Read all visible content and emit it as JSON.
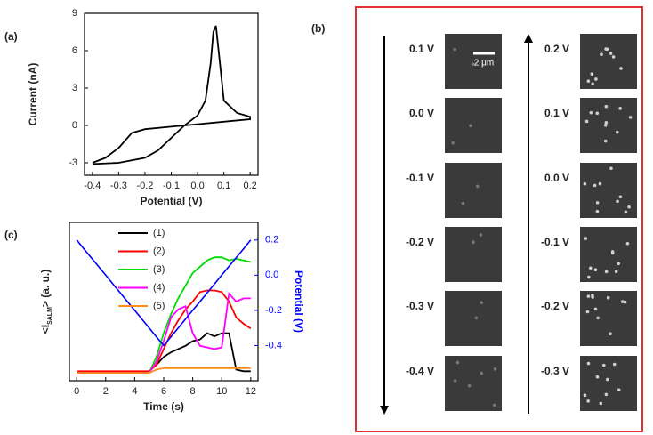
{
  "chart_data": [
    {
      "type": "line",
      "panel_label": "(a)",
      "x_label": "Potential (V)",
      "y_label": "Current (nA)",
      "x": [
        -0.4,
        -0.3,
        -0.2,
        -0.15,
        -0.1,
        -0.05,
        0.0,
        0.03,
        0.05,
        0.06,
        0.07,
        0.08,
        0.1,
        0.15,
        0.2,
        0.2,
        0.1,
        0.0,
        -0.1,
        -0.2,
        -0.25,
        -0.3,
        -0.35,
        -0.4
      ],
      "series": [
        {
          "color": "#000000",
          "values": [
            -3.1,
            -3.0,
            -2.6,
            -2.0,
            -1.0,
            0.0,
            0.8,
            2,
            5,
            7.5,
            8,
            6,
            2,
            1.0,
            0.7,
            0.5,
            0.3,
            0.1,
            -0.1,
            -0.3,
            -0.6,
            -1.8,
            -2.6,
            -3.0
          ]
        }
      ],
      "xlim": [
        -0.43,
        0.23
      ],
      "ylim": [
        -4,
        9
      ],
      "xticks": [
        -0.4,
        -0.3,
        -0.2,
        -0.1,
        {
          "value": 0,
          "label": "0.0"
        },
        0.1,
        0.2
      ],
      "yticks": [
        -3,
        0,
        3,
        6,
        9
      ]
    },
    {
      "type": "line",
      "panel_label": "(c)",
      "x_label": "Time (s)",
      "y_label": {
        "open": "<I",
        "sub": "SALM",
        "close": "> (a. u.)"
      },
      "y2_label": "Potential (V)",
      "x": [
        0,
        0.5,
        1,
        1.5,
        2,
        2.5,
        3,
        3.5,
        4,
        4.5,
        5,
        5.5,
        6,
        6.5,
        7,
        7.5,
        8,
        8.5,
        9,
        9.5,
        10,
        10.5,
        11,
        11.5,
        12
      ],
      "series": [
        {
          "name": "(1)",
          "color": "#000000",
          "values": [
            0.05,
            0.05,
            0.05,
            0.05,
            0.05,
            0.05,
            0.05,
            0.05,
            0.05,
            0.05,
            0.06,
            0.1,
            0.15,
            0.18,
            0.2,
            0.22,
            0.25,
            0.26,
            0.3,
            0.28,
            0.3,
            0.3,
            0.07,
            0.06,
            0.06
          ]
        },
        {
          "name": "(2)",
          "color": "#ff0000",
          "values": [
            0.06,
            0.06,
            0.06,
            0.06,
            0.06,
            0.06,
            0.06,
            0.06,
            0.06,
            0.06,
            0.06,
            0.1,
            0.2,
            0.3,
            0.38,
            0.45,
            0.5,
            0.56,
            0.57,
            0.57,
            0.56,
            0.5,
            0.4,
            0.36,
            0.33
          ]
        },
        {
          "name": "(3)",
          "color": "#00dd00",
          "values": [
            0.05,
            0.05,
            0.05,
            0.05,
            0.05,
            0.05,
            0.05,
            0.05,
            0.05,
            0.05,
            0.05,
            0.15,
            0.3,
            0.42,
            0.52,
            0.6,
            0.68,
            0.72,
            0.76,
            0.78,
            0.78,
            0.76,
            0.77,
            0.76,
            0.75
          ]
        },
        {
          "name": "(4)",
          "color": "#ff00ff",
          "values": [
            0.05,
            0.05,
            0.05,
            0.05,
            0.05,
            0.05,
            0.05,
            0.05,
            0.05,
            0.05,
            0.05,
            0.12,
            0.25,
            0.4,
            0.45,
            0.47,
            0.3,
            0.22,
            0.21,
            0.2,
            0.21,
            0.55,
            0.5,
            0.52,
            0.52
          ]
        },
        {
          "name": "(5)",
          "color": "#ff8c1a",
          "values": [
            0.05,
            0.05,
            0.05,
            0.05,
            0.05,
            0.05,
            0.05,
            0.05,
            0.05,
            0.05,
            0.05,
            0.07,
            0.08,
            0.08,
            0.08,
            0.08,
            0.08,
            0.08,
            0.08,
            0.08,
            0.08,
            0.08,
            0.08,
            0.08,
            0.08
          ]
        },
        {
          "color": "#0000ff",
          "axis": "y2",
          "values": [
            0.2,
            0.15,
            0.1,
            0.05,
            0,
            -0.05,
            -0.1,
            -0.15,
            -0.2,
            -0.25,
            -0.3,
            -0.35,
            -0.4,
            -0.35,
            -0.3,
            -0.25,
            -0.2,
            -0.15,
            -0.1,
            -0.05,
            0,
            0.05,
            0.1,
            0.15,
            0.2
          ]
        }
      ],
      "xlim": [
        -0.5,
        12.5
      ],
      "ylim": [
        0,
        1
      ],
      "y2lim": [
        -0.6,
        0.3
      ],
      "xticks": [
        0,
        2,
        4,
        6,
        8,
        10,
        12
      ],
      "y2ticks": [
        -0.4,
        -0.2,
        {
          "value": 0,
          "label": "0.0"
        },
        0.2
      ],
      "y2_color": "#0000ff"
    }
  ],
  "panel_b": {
    "label": "(b)",
    "scale_bar": "2 μm",
    "left_column": [
      "0.1 V",
      "0.0 V",
      "-0.1 V",
      "-0.2 V",
      "-0.3 V",
      "-0.4 V"
    ],
    "right_column": [
      "0.2 V",
      "0.1 V",
      "0.0 V",
      "-0.1 V",
      "-0.2 V",
      "-0.3 V"
    ]
  }
}
